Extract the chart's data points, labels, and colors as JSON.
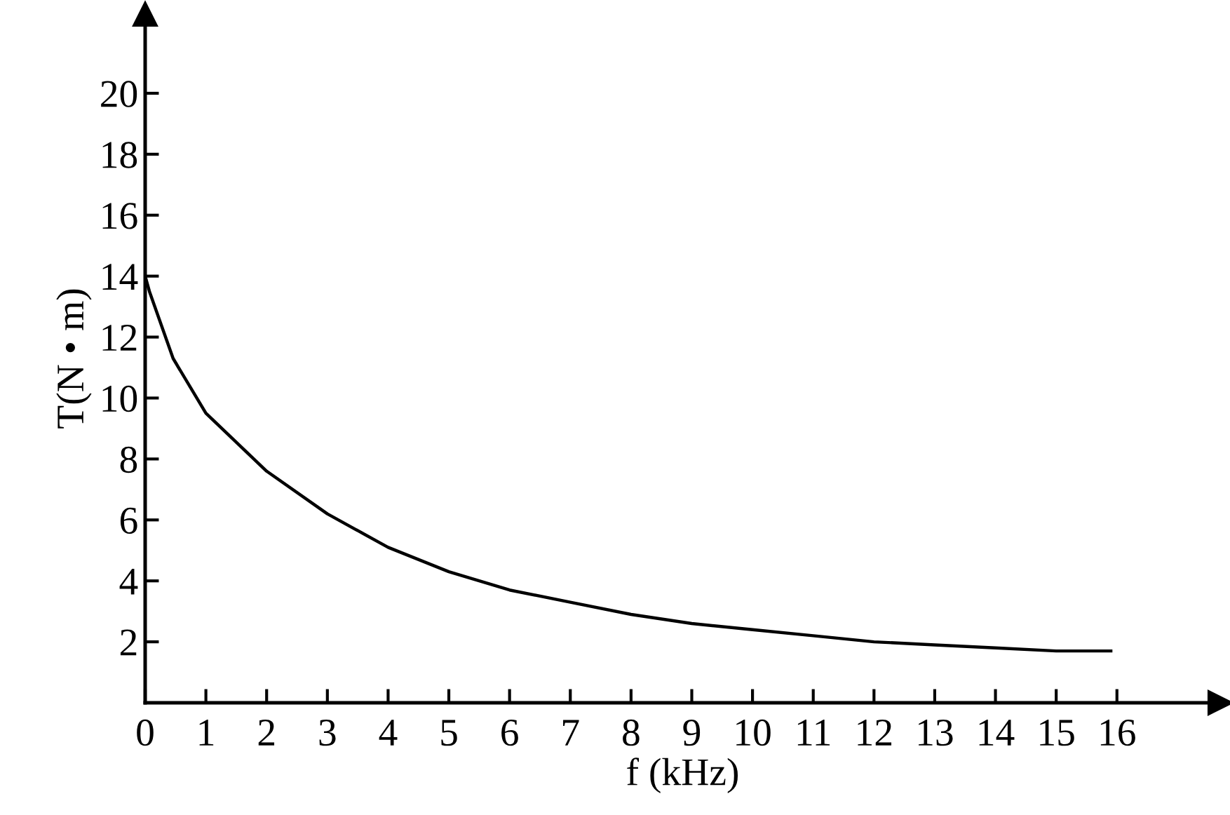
{
  "chart_data": {
    "type": "line",
    "xlabel": "f (kHz)",
    "ylabel": "T(N • m)",
    "x": [
      0,
      0.07,
      0.46,
      1,
      2,
      3,
      4,
      5,
      6,
      7,
      8,
      9,
      10,
      11,
      12,
      13,
      14,
      15,
      15.9
    ],
    "series": [
      {
        "color": "#000000",
        "values": [
          14,
          13.5,
          11.3,
          9.5,
          7.6,
          6.2,
          5.1,
          4.3,
          3.7,
          3.3,
          2.9,
          2.6,
          2.4,
          2.2,
          2.0,
          1.9,
          1.8,
          1.7,
          1.7
        ]
      }
    ],
    "xlim": [
      0,
      17.7
    ],
    "ylim": [
      0,
      22.6
    ],
    "xticks": [
      0,
      1,
      2,
      3,
      4,
      5,
      6,
      7,
      8,
      9,
      10,
      11,
      12,
      13,
      14,
      15,
      16
    ],
    "yticks": [
      2,
      4,
      6,
      8,
      10,
      12,
      14,
      16,
      18,
      20
    ],
    "grid": false,
    "legend": false,
    "marker": "none",
    "line_style": "solid"
  }
}
